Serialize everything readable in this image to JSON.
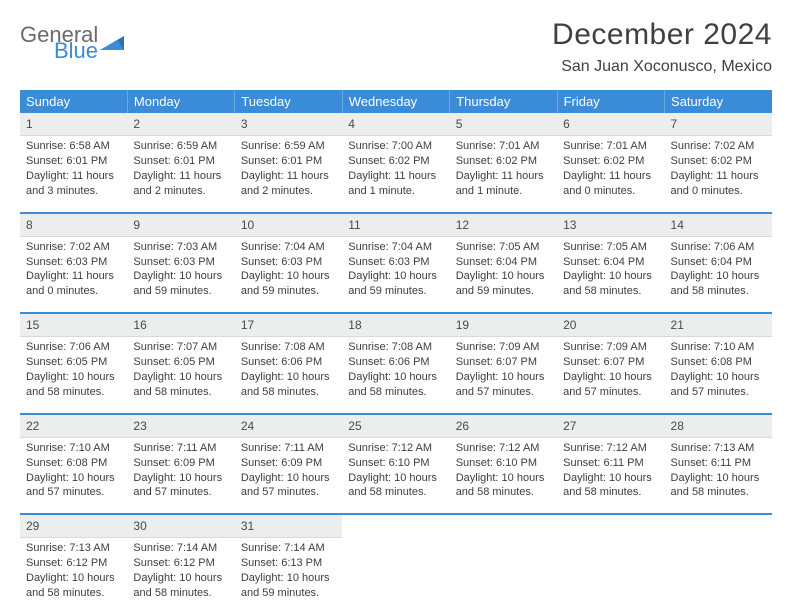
{
  "brand": {
    "text1": "General",
    "text2": "Blue",
    "text1_color": "#6a6a6a",
    "text2_color": "#3a8bd8"
  },
  "header": {
    "month_title": "December 2024",
    "location": "San Juan Xoconusco, Mexico"
  },
  "colors": {
    "header_bg": "#3a8bd8",
    "header_text": "#ffffff",
    "daynum_bg": "#eceded",
    "sep": "#3a8bd8",
    "body_text": "#3e3e3e"
  },
  "daysOfWeek": [
    "Sunday",
    "Monday",
    "Tuesday",
    "Wednesday",
    "Thursday",
    "Friday",
    "Saturday"
  ],
  "weeks": [
    [
      {
        "n": "1",
        "sr": "Sunrise: 6:58 AM",
        "ss": "Sunset: 6:01 PM",
        "d1": "Daylight: 11 hours",
        "d2": "and 3 minutes."
      },
      {
        "n": "2",
        "sr": "Sunrise: 6:59 AM",
        "ss": "Sunset: 6:01 PM",
        "d1": "Daylight: 11 hours",
        "d2": "and 2 minutes."
      },
      {
        "n": "3",
        "sr": "Sunrise: 6:59 AM",
        "ss": "Sunset: 6:01 PM",
        "d1": "Daylight: 11 hours",
        "d2": "and 2 minutes."
      },
      {
        "n": "4",
        "sr": "Sunrise: 7:00 AM",
        "ss": "Sunset: 6:02 PM",
        "d1": "Daylight: 11 hours",
        "d2": "and 1 minute."
      },
      {
        "n": "5",
        "sr": "Sunrise: 7:01 AM",
        "ss": "Sunset: 6:02 PM",
        "d1": "Daylight: 11 hours",
        "d2": "and 1 minute."
      },
      {
        "n": "6",
        "sr": "Sunrise: 7:01 AM",
        "ss": "Sunset: 6:02 PM",
        "d1": "Daylight: 11 hours",
        "d2": "and 0 minutes."
      },
      {
        "n": "7",
        "sr": "Sunrise: 7:02 AM",
        "ss": "Sunset: 6:02 PM",
        "d1": "Daylight: 11 hours",
        "d2": "and 0 minutes."
      }
    ],
    [
      {
        "n": "8",
        "sr": "Sunrise: 7:02 AM",
        "ss": "Sunset: 6:03 PM",
        "d1": "Daylight: 11 hours",
        "d2": "and 0 minutes."
      },
      {
        "n": "9",
        "sr": "Sunrise: 7:03 AM",
        "ss": "Sunset: 6:03 PM",
        "d1": "Daylight: 10 hours",
        "d2": "and 59 minutes."
      },
      {
        "n": "10",
        "sr": "Sunrise: 7:04 AM",
        "ss": "Sunset: 6:03 PM",
        "d1": "Daylight: 10 hours",
        "d2": "and 59 minutes."
      },
      {
        "n": "11",
        "sr": "Sunrise: 7:04 AM",
        "ss": "Sunset: 6:03 PM",
        "d1": "Daylight: 10 hours",
        "d2": "and 59 minutes."
      },
      {
        "n": "12",
        "sr": "Sunrise: 7:05 AM",
        "ss": "Sunset: 6:04 PM",
        "d1": "Daylight: 10 hours",
        "d2": "and 59 minutes."
      },
      {
        "n": "13",
        "sr": "Sunrise: 7:05 AM",
        "ss": "Sunset: 6:04 PM",
        "d1": "Daylight: 10 hours",
        "d2": "and 58 minutes."
      },
      {
        "n": "14",
        "sr": "Sunrise: 7:06 AM",
        "ss": "Sunset: 6:04 PM",
        "d1": "Daylight: 10 hours",
        "d2": "and 58 minutes."
      }
    ],
    [
      {
        "n": "15",
        "sr": "Sunrise: 7:06 AM",
        "ss": "Sunset: 6:05 PM",
        "d1": "Daylight: 10 hours",
        "d2": "and 58 minutes."
      },
      {
        "n": "16",
        "sr": "Sunrise: 7:07 AM",
        "ss": "Sunset: 6:05 PM",
        "d1": "Daylight: 10 hours",
        "d2": "and 58 minutes."
      },
      {
        "n": "17",
        "sr": "Sunrise: 7:08 AM",
        "ss": "Sunset: 6:06 PM",
        "d1": "Daylight: 10 hours",
        "d2": "and 58 minutes."
      },
      {
        "n": "18",
        "sr": "Sunrise: 7:08 AM",
        "ss": "Sunset: 6:06 PM",
        "d1": "Daylight: 10 hours",
        "d2": "and 58 minutes."
      },
      {
        "n": "19",
        "sr": "Sunrise: 7:09 AM",
        "ss": "Sunset: 6:07 PM",
        "d1": "Daylight: 10 hours",
        "d2": "and 57 minutes."
      },
      {
        "n": "20",
        "sr": "Sunrise: 7:09 AM",
        "ss": "Sunset: 6:07 PM",
        "d1": "Daylight: 10 hours",
        "d2": "and 57 minutes."
      },
      {
        "n": "21",
        "sr": "Sunrise: 7:10 AM",
        "ss": "Sunset: 6:08 PM",
        "d1": "Daylight: 10 hours",
        "d2": "and 57 minutes."
      }
    ],
    [
      {
        "n": "22",
        "sr": "Sunrise: 7:10 AM",
        "ss": "Sunset: 6:08 PM",
        "d1": "Daylight: 10 hours",
        "d2": "and 57 minutes."
      },
      {
        "n": "23",
        "sr": "Sunrise: 7:11 AM",
        "ss": "Sunset: 6:09 PM",
        "d1": "Daylight: 10 hours",
        "d2": "and 57 minutes."
      },
      {
        "n": "24",
        "sr": "Sunrise: 7:11 AM",
        "ss": "Sunset: 6:09 PM",
        "d1": "Daylight: 10 hours",
        "d2": "and 57 minutes."
      },
      {
        "n": "25",
        "sr": "Sunrise: 7:12 AM",
        "ss": "Sunset: 6:10 PM",
        "d1": "Daylight: 10 hours",
        "d2": "and 58 minutes."
      },
      {
        "n": "26",
        "sr": "Sunrise: 7:12 AM",
        "ss": "Sunset: 6:10 PM",
        "d1": "Daylight: 10 hours",
        "d2": "and 58 minutes."
      },
      {
        "n": "27",
        "sr": "Sunrise: 7:12 AM",
        "ss": "Sunset: 6:11 PM",
        "d1": "Daylight: 10 hours",
        "d2": "and 58 minutes."
      },
      {
        "n": "28",
        "sr": "Sunrise: 7:13 AM",
        "ss": "Sunset: 6:11 PM",
        "d1": "Daylight: 10 hours",
        "d2": "and 58 minutes."
      }
    ],
    [
      {
        "n": "29",
        "sr": "Sunrise: 7:13 AM",
        "ss": "Sunset: 6:12 PM",
        "d1": "Daylight: 10 hours",
        "d2": "and 58 minutes."
      },
      {
        "n": "30",
        "sr": "Sunrise: 7:14 AM",
        "ss": "Sunset: 6:12 PM",
        "d1": "Daylight: 10 hours",
        "d2": "and 58 minutes."
      },
      {
        "n": "31",
        "sr": "Sunrise: 7:14 AM",
        "ss": "Sunset: 6:13 PM",
        "d1": "Daylight: 10 hours",
        "d2": "and 59 minutes."
      },
      null,
      null,
      null,
      null
    ]
  ]
}
